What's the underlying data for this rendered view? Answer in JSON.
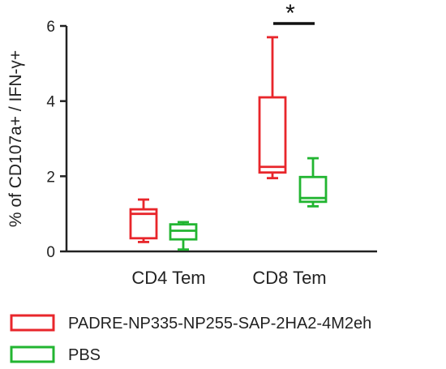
{
  "chart_data": {
    "type": "box",
    "ylabel": "% of CD107a+ / IFN-γ+",
    "ylim": [
      0,
      6
    ],
    "yticks": [
      "0",
      "2",
      "4",
      "6"
    ],
    "categories": [
      "CD4 Tem",
      "CD8 Tem"
    ],
    "series": [
      {
        "name": "PADRE-NP335-NP255-SAP-2HA2-4M2eh",
        "color": "#e8262b",
        "boxes": [
          {
            "min": 0.25,
            "q1": 0.35,
            "median": 1.0,
            "q3": 1.12,
            "max": 1.38
          },
          {
            "min": 1.95,
            "q1": 2.1,
            "median": 2.25,
            "q3": 4.1,
            "max": 5.7
          }
        ]
      },
      {
        "name": "PBS",
        "color": "#22b531",
        "boxes": [
          {
            "min": 0.05,
            "q1": 0.32,
            "median": 0.55,
            "q3": 0.72,
            "max": 0.78
          },
          {
            "min": 1.2,
            "q1": 1.32,
            "median": 1.42,
            "q3": 1.98,
            "max": 2.48
          }
        ]
      }
    ],
    "annotations": [
      {
        "text": "*",
        "category": "CD8 Tem"
      }
    ],
    "legend_placement": "bottom-left",
    "grid": false
  }
}
